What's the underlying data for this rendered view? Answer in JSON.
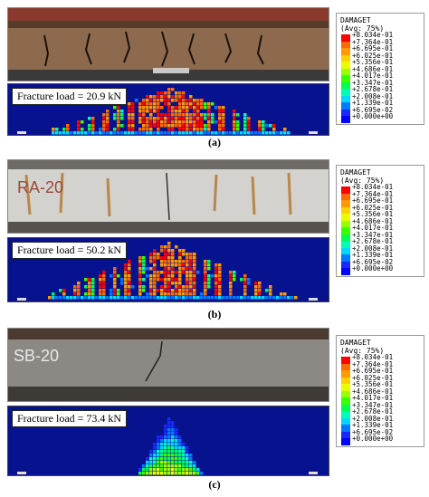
{
  "colors": {
    "blue_bg": "#06128e",
    "scale": [
      "#ff0000",
      "#ff6a00",
      "#ff9a00",
      "#ffd000",
      "#e8ff00",
      "#9cff00",
      "#3cff00",
      "#00ff50",
      "#00ffb0",
      "#00d8ff",
      "#0078ff",
      "#1a28ff",
      "#0000ff"
    ]
  },
  "legend": {
    "title": "DAMAGET",
    "subtitle": "(Avg: 75%)",
    "values": [
      "+8.034e-01",
      "+7.364e-01",
      "+6.695e-01",
      "+6.025e-01",
      "+5.356e-01",
      "+4.686e-01",
      "+4.017e-01",
      "+3.347e-01",
      "+2.678e-01",
      "+2.008e-01",
      "+1.339e-01",
      "+6.695e-02",
      "+0.000e+00"
    ]
  },
  "panels": [
    {
      "id": "a",
      "caption": "(a)",
      "fracture_label": "Fracture load = 20.9 kN",
      "photo_marking": ""
    },
    {
      "id": "b",
      "caption": "(b)",
      "fracture_label": "Fracture load = 50.2 kN",
      "photo_marking": "RA-20"
    },
    {
      "id": "c",
      "caption": "(c)",
      "fracture_label": "Fracture load = 73.4 kN",
      "photo_marking": "SB-20"
    }
  ]
}
